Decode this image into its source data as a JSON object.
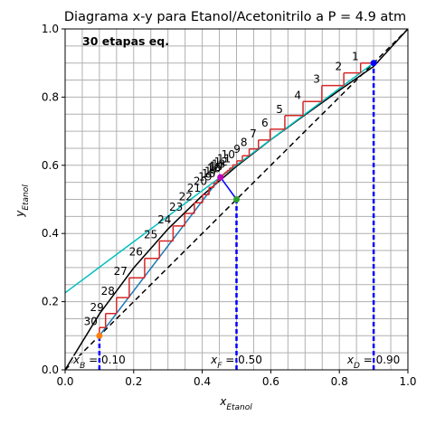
{
  "chart_data": {
    "type": "line",
    "title": "Diagrama x-y para Etanol/Acetonitrilo a P = 4.9 atm",
    "xlabel_main": "x",
    "xlabel_sub": "Etanol",
    "ylabel_main": "y",
    "ylabel_sub": "Etanol",
    "xlim": [
      0.0,
      1.0
    ],
    "ylim": [
      0.0,
      1.0
    ],
    "xticks": [
      "0.0",
      "0.2",
      "0.4",
      "0.6",
      "0.8",
      "1.0"
    ],
    "yticks": [
      "0.0",
      "0.2",
      "0.4",
      "0.6",
      "0.8",
      "1.0"
    ],
    "grid": true,
    "annotation": "30 etapas eq.",
    "colors": {
      "equilibrium": "#000000",
      "diagonal": "#000000",
      "q_line": "#0000ff",
      "rectifying": "#00bfbf",
      "stripping": "#1f77b4",
      "stages": "#d62728",
      "comp_lines": "#0000ff",
      "xD_point": "#0000ff",
      "xF_point": "#2ca02c",
      "xB_point": "#ff7f0e",
      "intersection": "#bf00bf"
    },
    "equilibrium_curve": {
      "x": [
        0.0,
        0.1,
        0.2,
        0.3,
        0.4,
        0.5,
        0.6,
        0.7,
        0.8,
        0.9,
        1.0
      ],
      "y": [
        0.0,
        0.164,
        0.299,
        0.413,
        0.511,
        0.597,
        0.675,
        0.748,
        0.82,
        0.89,
        1.0
      ]
    },
    "rectifying_line": {
      "x": [
        0.0,
        0.9
      ],
      "y": [
        0.226,
        0.9
      ]
    },
    "stripping_line": {
      "x": [
        0.1,
        0.453
      ],
      "y": [
        0.1,
        0.565
      ]
    },
    "q_line": {
      "x": [
        0.5,
        0.453
      ],
      "y": [
        0.5,
        0.565
      ]
    },
    "composition_labels": [
      {
        "main": "x",
        "sub": "B",
        "value": "= 0.10",
        "x": 0.1
      },
      {
        "main": "x",
        "sub": "F",
        "value": "= 0.50",
        "x": 0.5
      },
      {
        "main": "x",
        "sub": "D",
        "value": "= 0.90",
        "x": 0.9
      }
    ],
    "stages": [
      {
        "label": "1",
        "x": 0.862,
        "y": 0.9
      },
      {
        "label": "2",
        "x": 0.813,
        "y": 0.871
      },
      {
        "label": "3",
        "x": 0.749,
        "y": 0.834
      },
      {
        "label": "4",
        "x": 0.694,
        "y": 0.787
      },
      {
        "label": "5",
        "x": 0.641,
        "y": 0.746
      },
      {
        "label": "6",
        "x": 0.598,
        "y": 0.706
      },
      {
        "label": "7",
        "x": 0.564,
        "y": 0.674
      },
      {
        "label": "8",
        "x": 0.537,
        "y": 0.648
      },
      {
        "label": "9",
        "x": 0.517,
        "y": 0.628
      },
      {
        "label": "10",
        "x": 0.501,
        "y": 0.613
      },
      {
        "label": "11",
        "x": 0.489,
        "y": 0.601
      },
      {
        "label": "12",
        "x": 0.48,
        "y": 0.592
      },
      {
        "label": "13",
        "x": 0.473,
        "y": 0.585
      },
      {
        "label": "14",
        "x": 0.467,
        "y": 0.58
      },
      {
        "label": "15",
        "x": 0.463,
        "y": 0.576
      },
      {
        "label": "16",
        "x": 0.459,
        "y": 0.572
      },
      {
        "label": "17",
        "x": 0.452,
        "y": 0.563
      },
      {
        "label": "18",
        "x": 0.444,
        "y": 0.557
      },
      {
        "label": "19",
        "x": 0.434,
        "y": 0.548
      },
      {
        "label": "20",
        "x": 0.42,
        "y": 0.535
      },
      {
        "label": "21",
        "x": 0.401,
        "y": 0.514
      },
      {
        "label": "22",
        "x": 0.377,
        "y": 0.49
      },
      {
        "label": "23",
        "x": 0.349,
        "y": 0.459
      },
      {
        "label": "24",
        "x": 0.315,
        "y": 0.422
      },
      {
        "label": "25",
        "x": 0.275,
        "y": 0.378
      },
      {
        "label": "26",
        "x": 0.232,
        "y": 0.327
      },
      {
        "label": "27",
        "x": 0.187,
        "y": 0.27
      },
      {
        "label": "28",
        "x": 0.15,
        "y": 0.212
      },
      {
        "label": "29",
        "x": 0.118,
        "y": 0.165
      },
      {
        "label": "30",
        "x": 0.1,
        "y": 0.124
      }
    ]
  }
}
